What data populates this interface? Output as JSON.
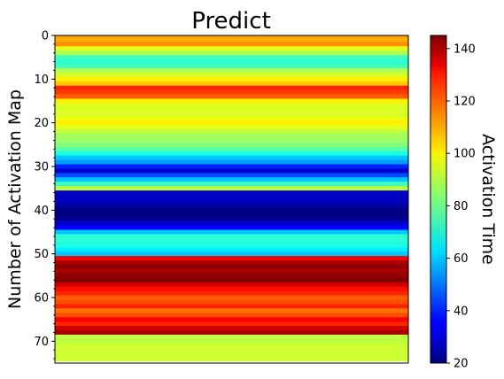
{
  "chart_data": {
    "type": "heatmap",
    "title": "Predict",
    "xlabel": "",
    "ylabel": "Number of Activation Map",
    "colorbar_label": "Activation Time",
    "colormap": "jet",
    "ylim": [
      75,
      0
    ],
    "yticks": [
      "0",
      "10",
      "20",
      "30",
      "40",
      "50",
      "60",
      "70"
    ],
    "colorbar_range": [
      20,
      145
    ],
    "colorbar_ticks": [
      "20",
      "40",
      "60",
      "80",
      "100",
      "120",
      "140"
    ],
    "rows": [
      110,
      108,
      112,
      95,
      88,
      75,
      72,
      75,
      88,
      93,
      100,
      105,
      125,
      122,
      118,
      100,
      94,
      94,
      93,
      96,
      100,
      95,
      90,
      87,
      86,
      83,
      78,
      70,
      60,
      55,
      40,
      30,
      45,
      60,
      75,
      90,
      28,
      28,
      28,
      24,
      20,
      20,
      22,
      30,
      35,
      60,
      72,
      72,
      70,
      65,
      60,
      130,
      140,
      143,
      140,
      143,
      145,
      135,
      128,
      125,
      118,
      120,
      125,
      115,
      120,
      130,
      125,
      135,
      140,
      90,
      90,
      92,
      92,
      92,
      92
    ]
  }
}
